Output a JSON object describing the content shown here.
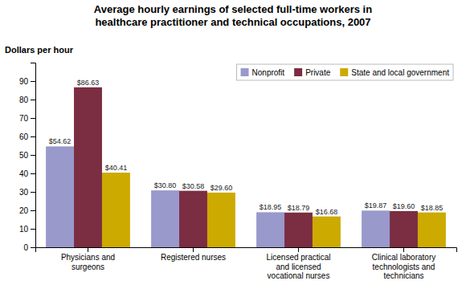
{
  "chart_data": {
    "type": "bar",
    "title": "Average hourly earnings of selected full-time workers in\nhealthcare practitioner and technical occupations, 2007",
    "ylabel": "Dollars per hour",
    "categories": [
      "Physicians and\nsurgeons",
      "Registered nurses",
      "Licensed practical\nand licensed\nvocational nurses",
      "Clinical laboratory\ntechnologists and\ntechnicians"
    ],
    "series": [
      {
        "name": "Nonprofit",
        "color": "#9999cc",
        "values": [
          54.62,
          30.8,
          18.95,
          19.87
        ],
        "value_labels": [
          "$54.62",
          "$30.80",
          "$18.95",
          "$19.87"
        ]
      },
      {
        "name": "Private",
        "color": "#7b2d42",
        "values": [
          86.63,
          30.58,
          18.79,
          19.6
        ],
        "value_labels": [
          "$86.63",
          "$30.58",
          "$18.79",
          "$19.60"
        ]
      },
      {
        "name": "State and local government",
        "color": "#ccaa00",
        "values": [
          40.41,
          29.6,
          16.68,
          18.85
        ],
        "value_labels": [
          "$40.41",
          "$29.60",
          "$16.68",
          "$18.85"
        ]
      }
    ],
    "ylim": [
      0,
      100
    ],
    "yticks": [
      0,
      10,
      20,
      30,
      40,
      50,
      60,
      70,
      80,
      90
    ],
    "grid": false,
    "legend": "upper-right",
    "data_labels": true
  }
}
